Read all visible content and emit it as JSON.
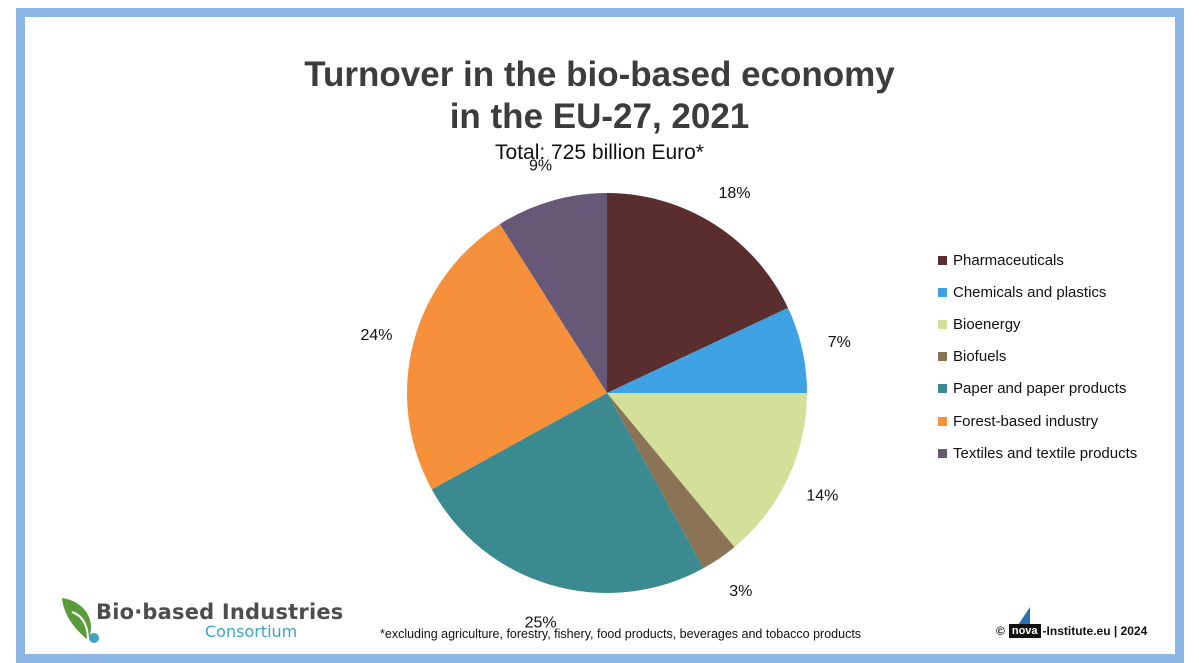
{
  "chart_data": {
    "type": "pie",
    "title_line1": "Turnover in the bio-based economy",
    "title_line2": "in the EU-27, 2021",
    "subtitle": "Total: 725 billion Euro*",
    "legend_position": "right",
    "slices": [
      {
        "name": "Pharmaceuticals",
        "value": 18,
        "label": "18%",
        "color": "#5a2d2e"
      },
      {
        "name": "Chemicals and plastics",
        "value": 7,
        "label": "7%",
        "color": "#3fa3e3"
      },
      {
        "name": "Bioenergy",
        "value": 14,
        "label": "14%",
        "color": "#d4e09a"
      },
      {
        "name": "Biofuels",
        "value": 3,
        "label": "3%",
        "color": "#8b7355"
      },
      {
        "name": "Paper and paper products",
        "value": 25,
        "label": "25%",
        "color": "#3a8a8f"
      },
      {
        "name": "Forest-based industry",
        "value": 24,
        "label": "24%",
        "color": "#f7903a"
      },
      {
        "name": "Textiles and textile products",
        "value": 9,
        "label": "9%",
        "color": "#675878"
      }
    ]
  },
  "footnote": "*excluding agriculture, forestry, fishery, food products, beverages and tobacco products",
  "copyright": {
    "symbol": "©",
    "brand": "nova",
    "suffix": "-Institute.eu | 2024"
  },
  "logo": {
    "name": "Bio·based Industries",
    "sub": "Consortium"
  },
  "colors": {
    "frame": "#8db8e6",
    "title": "#3c3c3c"
  }
}
